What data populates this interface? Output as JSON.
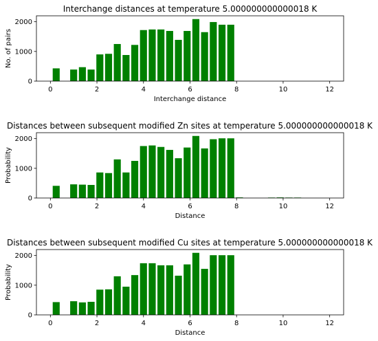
{
  "figure": {
    "bar_color": "#008000",
    "axis_color": "#000000",
    "background": "#ffffff"
  },
  "chart_data": [
    {
      "type": "bar",
      "title": "Interchange distances at temperature 5.000000000000018 K",
      "xlabel": "Interchange distance",
      "ylabel": "No. of pairs",
      "xlim": [
        -0.6,
        12.6
      ],
      "ylim": [
        0,
        2200
      ],
      "xticks": [
        0,
        2,
        4,
        6,
        8,
        10,
        12
      ],
      "yticks": [
        0,
        1000,
        2000
      ],
      "bar_width": 0.3,
      "x": [
        0.25,
        1.0,
        1.375,
        1.75,
        2.125,
        2.5,
        2.875,
        3.25,
        3.625,
        4.0,
        4.375,
        4.75,
        5.125,
        5.5,
        5.875,
        6.25,
        6.625,
        7.0,
        7.375,
        7.75
      ],
      "values": [
        430,
        390,
        470,
        390,
        900,
        920,
        1250,
        880,
        1220,
        1720,
        1740,
        1740,
        1690,
        1390,
        1690,
        2090,
        1650,
        1990,
        1900,
        1900
      ]
    },
    {
      "type": "bar",
      "title": "Distances between subsequent modified Zn sites at temperature 5.000000000000018 K",
      "xlabel": "Distance",
      "ylabel": "Probability",
      "xlim": [
        -0.6,
        12.6
      ],
      "ylim": [
        0,
        2200
      ],
      "xticks": [
        0,
        2,
        4,
        6,
        8,
        10,
        12
      ],
      "yticks": [
        0,
        1000,
        2000
      ],
      "bar_width": 0.3,
      "x": [
        0.25,
        1.0,
        1.375,
        1.75,
        2.125,
        2.5,
        2.875,
        3.25,
        3.625,
        4.0,
        4.375,
        4.75,
        5.125,
        5.5,
        5.875,
        6.25,
        6.625,
        7.0,
        7.375,
        7.75,
        8.125,
        9.5,
        9.875,
        10.25,
        10.625
      ],
      "values": [
        410,
        460,
        450,
        440,
        860,
        840,
        1300,
        860,
        1250,
        1750,
        1770,
        1720,
        1620,
        1340,
        1700,
        2090,
        1670,
        1980,
        2010,
        2010,
        20,
        15,
        20,
        15,
        15
      ]
    },
    {
      "type": "bar",
      "title": "Distances between subsequent modified Cu sites at temperature 5.000000000000018 K",
      "xlabel": "Distance",
      "ylabel": "Probability",
      "xlim": [
        -0.6,
        12.6
      ],
      "ylim": [
        0,
        2200
      ],
      "xticks": [
        0,
        2,
        4,
        6,
        8,
        10,
        12
      ],
      "yticks": [
        0,
        1000,
        2000
      ],
      "bar_width": 0.3,
      "x": [
        0.25,
        1.0,
        1.375,
        1.75,
        2.125,
        2.5,
        2.875,
        3.25,
        3.625,
        4.0,
        4.375,
        4.75,
        5.125,
        5.5,
        5.875,
        6.25,
        6.625,
        7.0,
        7.375,
        7.75
      ],
      "values": [
        430,
        460,
        420,
        440,
        850,
        860,
        1300,
        950,
        1340,
        1740,
        1740,
        1670,
        1670,
        1320,
        1700,
        2090,
        1550,
        2010,
        2010,
        2010
      ]
    }
  ]
}
